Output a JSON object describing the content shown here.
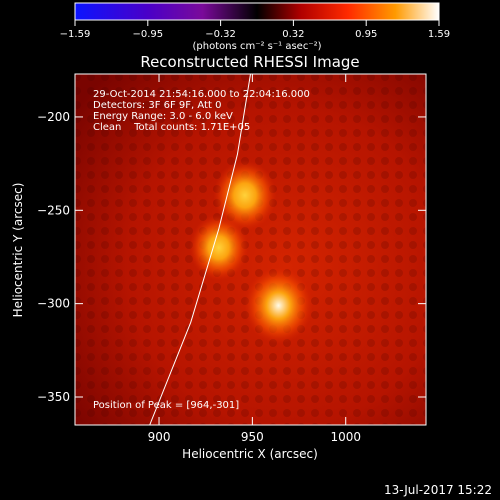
{
  "chart_data": {
    "type": "heatmap",
    "title": "Reconstructed RHESSI Image",
    "xlabel": "Heliocentric X (arcsec)",
    "ylabel": "Heliocentric Y (arcsec)",
    "xlim": [
      855,
      1043
    ],
    "ylim": [
      -365,
      -177
    ],
    "xticks": [
      900,
      950,
      1000
    ],
    "yticks": [
      -200,
      -250,
      -300,
      -350
    ],
    "colorbar": {
      "label": "(photons cm⁻² s⁻¹ asec⁻²)",
      "range": [
        -1.59,
        1.59
      ],
      "ticks": [
        "−1.59",
        "−0.95",
        "−0.32",
        "0.32",
        "0.95",
        "1.59"
      ]
    },
    "annotations": [
      "29-Oct-2014 21:54:16.000 to 22:04:16.000",
      "Detectors: 3F 6F 9F, Att 0",
      "Energy Range: 3.0 - 6.0 keV",
      "Clean    Total counts: 1.71E+05"
    ],
    "peak_label": "Position of Peak = [964,-301]",
    "peak": [
      964,
      -301
    ],
    "sources": [
      {
        "x": 964,
        "y": -301,
        "intensity": 1.59
      },
      {
        "x": 946,
        "y": -242,
        "intensity": 1.2
      },
      {
        "x": 932,
        "y": -270,
        "intensity": 0.9
      }
    ],
    "limb_curve": [
      [
        895,
        -365
      ],
      [
        917,
        -310
      ],
      [
        932,
        -260
      ],
      [
        942,
        -220
      ],
      [
        949,
        -177
      ]
    ],
    "footer_date": "13-Jul-2017 15:22"
  }
}
